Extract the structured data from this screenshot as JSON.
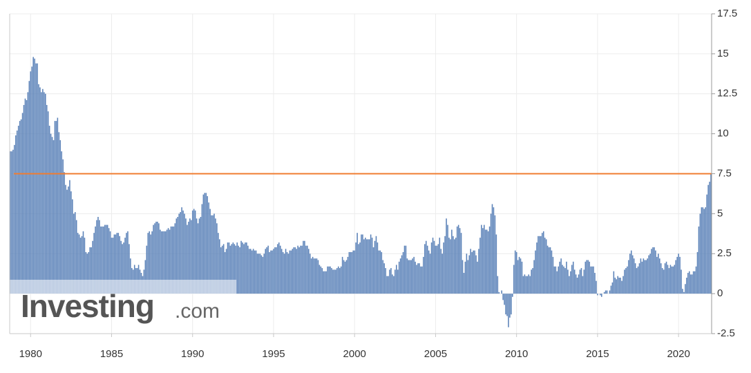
{
  "chart_data": {
    "type": "bar",
    "color": "#5b82b8",
    "categories": [
      null,
      null,
      null,
      null,
      null,
      null,
      null,
      null,
      null,
      null,
      null,
      null,
      null,
      null,
      null,
      "1980",
      null,
      null,
      null,
      null,
      null,
      null,
      null,
      null,
      null,
      null,
      null,
      null,
      null,
      null,
      null,
      null,
      null,
      null,
      null,
      null,
      null,
      null,
      null,
      null,
      null,
      null,
      null,
      null,
      null,
      null,
      null,
      null,
      null,
      null,
      null,
      null,
      null,
      null,
      null,
      null,
      null,
      null,
      null,
      null,
      null,
      null,
      null,
      null,
      null,
      null,
      null,
      null,
      null,
      null,
      null,
      null,
      null,
      null,
      null,
      "1985",
      null,
      null,
      null,
      null,
      null,
      null,
      null,
      null,
      null,
      null,
      null,
      null,
      null,
      null,
      null,
      null,
      null,
      null,
      null,
      null,
      null,
      null,
      null,
      null,
      null,
      null,
      null,
      null,
      null,
      null,
      null,
      null,
      null,
      null,
      null,
      null,
      null,
      null,
      null,
      null,
      null,
      null,
      null,
      null,
      null,
      null,
      null,
      null,
      null,
      null,
      null,
      null,
      null,
      null,
      null,
      null,
      null,
      null,
      null,
      "1990",
      null,
      null,
      null,
      null,
      null,
      null,
      null,
      null,
      null,
      null,
      null,
      null,
      null,
      null,
      null,
      null,
      null,
      null,
      null,
      null,
      null,
      null,
      null,
      null,
      null,
      null,
      null,
      null,
      null,
      null,
      null,
      null,
      null,
      null,
      null,
      null,
      null,
      null,
      null,
      null,
      null,
      null,
      null,
      null,
      null,
      null,
      null,
      null,
      null,
      null,
      null,
      null,
      null,
      null,
      null,
      null,
      null,
      null,
      null,
      "1995",
      null,
      null,
      null,
      null,
      null,
      null,
      null,
      null,
      null,
      null,
      null,
      null,
      null,
      null,
      null,
      null,
      null,
      null,
      null,
      null,
      null,
      null,
      null,
      null,
      null,
      null,
      null,
      null,
      null,
      null,
      null,
      null,
      null,
      null,
      null,
      null,
      null,
      null,
      null,
      null,
      null,
      null,
      null,
      null,
      null,
      null,
      null,
      null,
      null,
      null,
      null,
      null,
      null,
      null,
      null,
      null,
      null,
      null,
      null,
      "2000",
      null,
      null,
      null,
      null,
      null,
      null,
      null,
      null,
      null,
      null,
      null,
      null,
      null,
      null,
      null,
      null,
      null,
      null,
      null,
      null,
      null,
      null,
      null,
      null,
      null,
      null,
      null,
      null,
      null,
      null,
      null,
      null,
      null,
      null,
      null,
      null,
      null,
      null,
      null,
      null,
      null,
      null,
      null,
      null,
      null,
      null,
      null,
      null,
      null,
      null,
      null,
      null,
      null,
      null,
      null,
      null,
      null,
      null,
      null,
      "2005",
      null,
      null,
      null,
      null,
      null,
      null,
      null,
      null,
      null,
      null,
      null,
      null,
      null,
      null,
      null,
      null,
      null,
      null,
      null,
      null,
      null,
      null,
      null,
      null,
      null,
      null,
      null,
      null,
      null,
      null,
      null,
      null,
      null,
      null,
      null,
      null,
      null,
      null,
      null,
      null,
      null,
      null,
      null,
      null,
      null,
      null,
      null,
      null,
      null,
      null,
      null,
      null,
      null,
      null,
      null,
      null,
      null,
      null,
      null,
      "2010",
      null,
      null,
      null,
      null,
      null,
      null,
      null,
      null,
      null,
      null,
      null,
      null,
      null,
      null,
      null,
      null,
      null,
      null,
      null,
      null,
      null,
      null,
      null,
      null,
      null,
      null,
      null,
      null,
      null,
      null,
      null,
      null,
      null,
      null,
      null,
      null,
      null,
      null,
      null,
      null,
      null,
      null,
      null,
      null,
      null,
      null,
      null,
      null,
      null,
      null,
      null,
      null,
      null,
      null,
      null,
      null,
      null,
      null,
      null,
      "2015",
      null,
      null,
      null,
      null,
      null,
      null,
      null,
      null,
      null,
      null,
      null,
      null,
      null,
      null,
      null,
      null,
      null,
      null,
      null,
      null,
      null,
      null,
      null,
      null,
      null,
      null,
      null,
      null,
      null,
      null,
      null,
      null,
      null,
      null,
      null,
      null,
      null,
      null,
      null,
      null,
      null,
      null,
      null,
      null,
      null,
      null,
      null,
      null,
      null,
      null,
      null,
      null,
      null,
      null,
      null,
      null,
      null,
      null,
      null,
      "2020",
      null,
      null,
      null,
      null,
      null,
      null,
      null,
      null,
      null,
      null,
      null,
      null,
      null,
      null,
      null,
      null,
      null,
      null,
      null,
      null,
      null,
      null,
      null,
      null
    ],
    "values": [
      8.9,
      8.9,
      9.0,
      9.3,
      9.9,
      10.2,
      10.5,
      10.8,
      10.9,
      11.3,
      11.8,
      12.2,
      12.1,
      12.6,
      13.3,
      13.9,
      14.2,
      14.8,
      14.7,
      14.4,
      14.4,
      13.1,
      12.9,
      12.6,
      12.8,
      12.6,
      12.5,
      11.8,
      11.4,
      10.5,
      10.0,
      9.8,
      9.6,
      10.8,
      10.8,
      11.0,
      10.1,
      9.6,
      8.9,
      8.4,
      7.6,
      6.8,
      6.5,
      6.7,
      7.1,
      6.4,
      5.9,
      5.0,
      5.1,
      4.6,
      3.8,
      3.7,
      3.5,
      3.6,
      3.9,
      3.5,
      2.6,
      2.5,
      2.6,
      2.9,
      2.9,
      3.3,
      3.8,
      4.2,
      4.6,
      4.8,
      4.6,
      4.2,
      4.2,
      4.2,
      4.3,
      4.3,
      4.3,
      4.1,
      3.9,
      3.5,
      3.5,
      3.7,
      3.7,
      3.8,
      3.8,
      3.6,
      3.3,
      3.1,
      3.2,
      3.5,
      3.8,
      3.9,
      3.1,
      2.2,
      1.6,
      1.5,
      1.8,
      1.6,
      1.6,
      1.8,
      1.5,
      1.3,
      1.1,
      1.5,
      2.1,
      3.0,
      3.8,
      3.9,
      3.7,
      3.9,
      4.3,
      4.4,
      4.5,
      4.5,
      4.4,
      4.0,
      3.9,
      3.9,
      3.9,
      3.9,
      4.0,
      4.1,
      4.0,
      4.2,
      4.2,
      4.2,
      4.4,
      4.7,
      4.8,
      5.0,
      5.1,
      5.4,
      5.2,
      5.0,
      4.7,
      4.3,
      4.5,
      4.7,
      4.6,
      5.2,
      5.3,
      5.2,
      4.7,
      4.4,
      4.7,
      4.8,
      5.6,
      6.2,
      6.3,
      6.3,
      6.1,
      5.7,
      5.3,
      4.9,
      4.9,
      5.0,
      4.7,
      4.4,
      3.8,
      3.4,
      2.9,
      3.0,
      3.1,
      2.6,
      2.8,
      3.2,
      3.2,
      3.0,
      3.1,
      3.2,
      3.1,
      3.0,
      3.2,
      3.0,
      2.9,
      3.3,
      3.2,
      3.1,
      3.2,
      3.2,
      3.0,
      2.8,
      2.8,
      2.7,
      2.8,
      2.7,
      2.7,
      2.5,
      2.5,
      2.5,
      2.4,
      2.3,
      2.5,
      2.8,
      2.9,
      3.0,
      2.6,
      2.7,
      2.7,
      2.8,
      2.9,
      2.9,
      3.1,
      3.2,
      3.0,
      2.8,
      2.6,
      2.5,
      2.8,
      2.6,
      2.5,
      2.7,
      2.7,
      2.8,
      2.9,
      2.9,
      2.8,
      3.0,
      2.9,
      3.0,
      3.0,
      3.3,
      3.3,
      3.0,
      3.0,
      2.8,
      2.5,
      2.2,
      2.3,
      2.2,
      2.2,
      2.2,
      2.1,
      1.8,
      1.7,
      1.6,
      1.4,
      1.4,
      1.4,
      1.7,
      1.7,
      1.7,
      1.6,
      1.5,
      1.5,
      1.5,
      1.6,
      1.7,
      1.6,
      1.7,
      2.3,
      2.1,
      2.0,
      2.1,
      2.3,
      2.6,
      2.6,
      2.6,
      2.7,
      2.7,
      3.2,
      3.8,
      3.1,
      3.2,
      3.7,
      3.7,
      3.4,
      3.5,
      3.4,
      3.4,
      3.4,
      3.7,
      3.5,
      2.9,
      3.3,
      3.6,
      3.2,
      2.7,
      2.7,
      2.6,
      2.1,
      1.9,
      1.6,
      1.1,
      1.1,
      1.5,
      1.6,
      1.2,
      1.1,
      1.5,
      1.8,
      1.5,
      2.0,
      2.2,
      2.4,
      2.6,
      3.0,
      3.0,
      2.2,
      2.1,
      2.1,
      2.1,
      2.2,
      2.3,
      2.0,
      1.8,
      1.9,
      1.9,
      1.7,
      1.7,
      2.3,
      3.1,
      3.3,
      3.0,
      2.7,
      2.5,
      3.2,
      3.5,
      3.3,
      3.0,
      3.0,
      3.1,
      3.5,
      2.8,
      2.5,
      3.2,
      3.6,
      4.7,
      4.3,
      3.5,
      3.4,
      4.0,
      3.6,
      3.4,
      3.5,
      4.2,
      4.3,
      4.1,
      3.8,
      2.1,
      1.3,
      2.0,
      2.5,
      2.1,
      2.4,
      2.8,
      2.6,
      2.7,
      2.7,
      2.4,
      2.0,
      2.8,
      3.5,
      4.3,
      4.1,
      4.3,
      4.0,
      4.0,
      3.9,
      4.2,
      5.0,
      5.6,
      5.4,
      4.9,
      3.7,
      1.1,
      0.1,
      0.0,
      0.2,
      -0.4,
      -0.7,
      -1.3,
      -1.4,
      -2.1,
      -1.5,
      -1.3,
      -0.2,
      1.8,
      2.7,
      2.6,
      2.1,
      2.3,
      2.2,
      2.0,
      1.1,
      1.2,
      1.1,
      1.1,
      1.2,
      1.1,
      1.5,
      1.6,
      2.1,
      2.7,
      3.2,
      3.6,
      3.6,
      3.6,
      3.8,
      3.9,
      3.5,
      3.4,
      3.0,
      2.9,
      2.9,
      2.7,
      2.3,
      1.7,
      1.7,
      1.4,
      1.7,
      2.0,
      2.2,
      1.8,
      1.7,
      1.6,
      2.0,
      1.5,
      1.1,
      1.4,
      1.8,
      2.0,
      1.5,
      1.2,
      1.0,
      1.2,
      1.5,
      1.6,
      1.1,
      1.5,
      2.0,
      2.1,
      2.1,
      2.0,
      1.7,
      1.7,
      1.7,
      1.3,
      0.8,
      -0.1,
      0.0,
      -0.1,
      -0.2,
      0.0,
      0.1,
      0.2,
      0.2,
      0.0,
      0.2,
      0.5,
      0.7,
      1.4,
      1.0,
      0.9,
      1.1,
      1.0,
      1.0,
      0.8,
      1.1,
      1.5,
      1.6,
      1.7,
      2.1,
      2.5,
      2.7,
      2.4,
      2.2,
      1.9,
      1.6,
      1.7,
      1.9,
      2.2,
      2.0,
      2.2,
      2.1,
      2.1,
      2.2,
      2.4,
      2.5,
      2.8,
      2.9,
      2.9,
      2.7,
      2.3,
      2.5,
      2.2,
      1.9,
      1.6,
      1.5,
      1.9,
      2.0,
      1.8,
      1.6,
      1.8,
      1.7,
      1.7,
      1.8,
      2.1,
      2.3,
      2.5,
      2.3,
      1.5,
      0.3,
      0.1,
      0.6,
      1.0,
      1.3,
      1.4,
      1.2,
      1.2,
      1.4,
      1.4,
      1.7,
      2.6,
      4.2,
      5.0,
      5.4,
      5.4,
      5.3,
      5.4,
      6.2,
      6.8,
      7.0,
      7.5
    ],
    "ylim": [
      -2.5,
      17.5
    ],
    "yticks": [
      -2.5,
      0,
      2.5,
      5,
      7.5,
      10,
      12.5,
      15,
      17.5
    ],
    "grid": true,
    "reference_line": {
      "value": 7.5,
      "color": "#f07c30"
    },
    "watermark": "Investing",
    "watermark_suffix": ".com"
  }
}
